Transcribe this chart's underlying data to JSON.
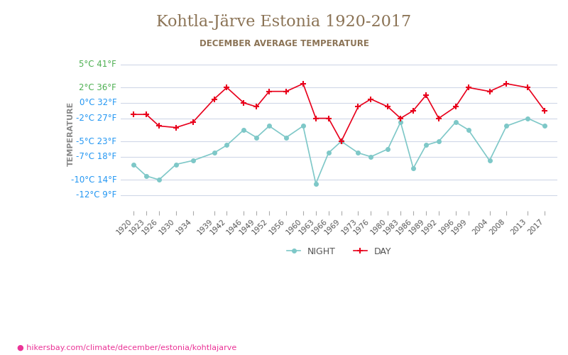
{
  "title": "Kohtla-Järve Estonia 1920-2017",
  "subtitle": "DECEMBER AVERAGE TEMPERATURE",
  "ylabel": "TEMPERATURE",
  "watermark": "hikersbay.com/climate/december/estonia/kohtlajarve",
  "title_color": "#8B7355",
  "subtitle_color": "#8B7355",
  "background_color": "#ffffff",
  "grid_color": "#d0d8e8",
  "years": [
    1920,
    1923,
    1926,
    1930,
    1934,
    1939,
    1942,
    1946,
    1949,
    1952,
    1956,
    1960,
    1963,
    1966,
    1969,
    1973,
    1976,
    1980,
    1983,
    1986,
    1989,
    1992,
    1996,
    1999,
    2004,
    2008,
    2013,
    2017
  ],
  "day_values": [
    -1.5,
    -1.5,
    -3.0,
    -3.2,
    -2.5,
    0.5,
    2.0,
    0.0,
    -0.5,
    1.5,
    1.5,
    2.5,
    -2.0,
    -2.0,
    -5.0,
    -0.5,
    0.5,
    -0.5,
    -2.0,
    -1.0,
    1.0,
    -2.0,
    -0.5,
    2.0,
    1.5,
    2.5,
    2.0,
    -1.0
  ],
  "night_values": [
    -8.0,
    -9.5,
    -10.0,
    -8.0,
    -7.5,
    -6.5,
    -5.5,
    -3.5,
    -4.5,
    -3.0,
    -4.5,
    -3.0,
    -10.5,
    -6.5,
    -5.0,
    -6.5,
    -7.0,
    -6.0,
    -2.5,
    -8.5,
    -5.5,
    -5.0,
    -2.5,
    -3.5,
    -7.5,
    -3.0,
    -2.0,
    -3.0
  ],
  "day_color": "#e8001c",
  "night_color": "#7ec8c8",
  "yticks_celsius": [
    5,
    2,
    0,
    -2,
    -5,
    -7,
    -10,
    -12
  ],
  "yticks_fahrenheit": [
    41,
    36,
    32,
    27,
    23,
    18,
    14,
    9
  ],
  "ymin": -14,
  "ymax": 6,
  "tick_label_color_positive": "#4caf50",
  "tick_label_color_zero": "#2196f3",
  "tick_label_color_negative": "#2196f3"
}
